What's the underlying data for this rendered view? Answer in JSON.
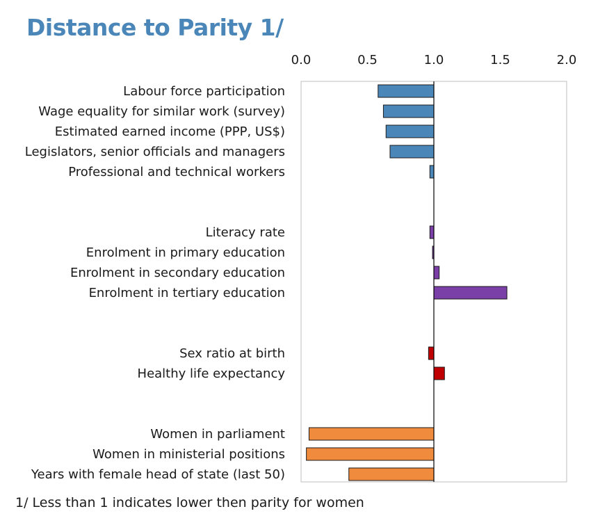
{
  "title": "Distance to Parity 1/",
  "footnote": "1/ Less than 1 indicates lower then parity for women",
  "chart_data": {
    "type": "bar",
    "orientation": "horizontal",
    "baseline": 1.0,
    "xlim": [
      0,
      2
    ],
    "xticks": [
      "0.0",
      "0.5",
      "1.0",
      "1.5",
      "2.0"
    ],
    "xtick_values": [
      0,
      0.5,
      1.0,
      1.5,
      2.0
    ],
    "grid": false,
    "legend": false,
    "colors": {
      "economic": "#4a86b8",
      "education": "#7b3fa8",
      "health": "#c00000",
      "political": "#f08a3c"
    },
    "groups": [
      {
        "color_key": "economic",
        "items": [
          {
            "label": "Labour force participation",
            "value": 0.58
          },
          {
            "label": "Wage equality for similar work (survey)",
            "value": 0.62
          },
          {
            "label": "Estimated earned income (PPP, US$)",
            "value": 0.64
          },
          {
            "label": "Legislators, senior officials and managers",
            "value": 0.67
          },
          {
            "label": "Professional and technical workers",
            "value": 0.97
          }
        ]
      },
      {
        "color_key": "education",
        "items": [
          {
            "label": "Literacy rate",
            "value": 0.97
          },
          {
            "label": "Enrolment in primary education",
            "value": 0.99
          },
          {
            "label": "Enrolment in secondary education",
            "value": 1.04
          },
          {
            "label": "Enrolment in tertiary education",
            "value": 1.55
          }
        ]
      },
      {
        "color_key": "health",
        "items": [
          {
            "label": "Sex ratio at birth",
            "value": 0.96
          },
          {
            "label": "Healthy life expectancy",
            "value": 1.08
          }
        ]
      },
      {
        "color_key": "political",
        "items": [
          {
            "label": "Women in parliament",
            "value": 0.06
          },
          {
            "label": "Women in ministerial positions",
            "value": 0.04
          },
          {
            "label": "Years with female head of state (last 50)",
            "value": 0.36
          }
        ]
      }
    ]
  }
}
